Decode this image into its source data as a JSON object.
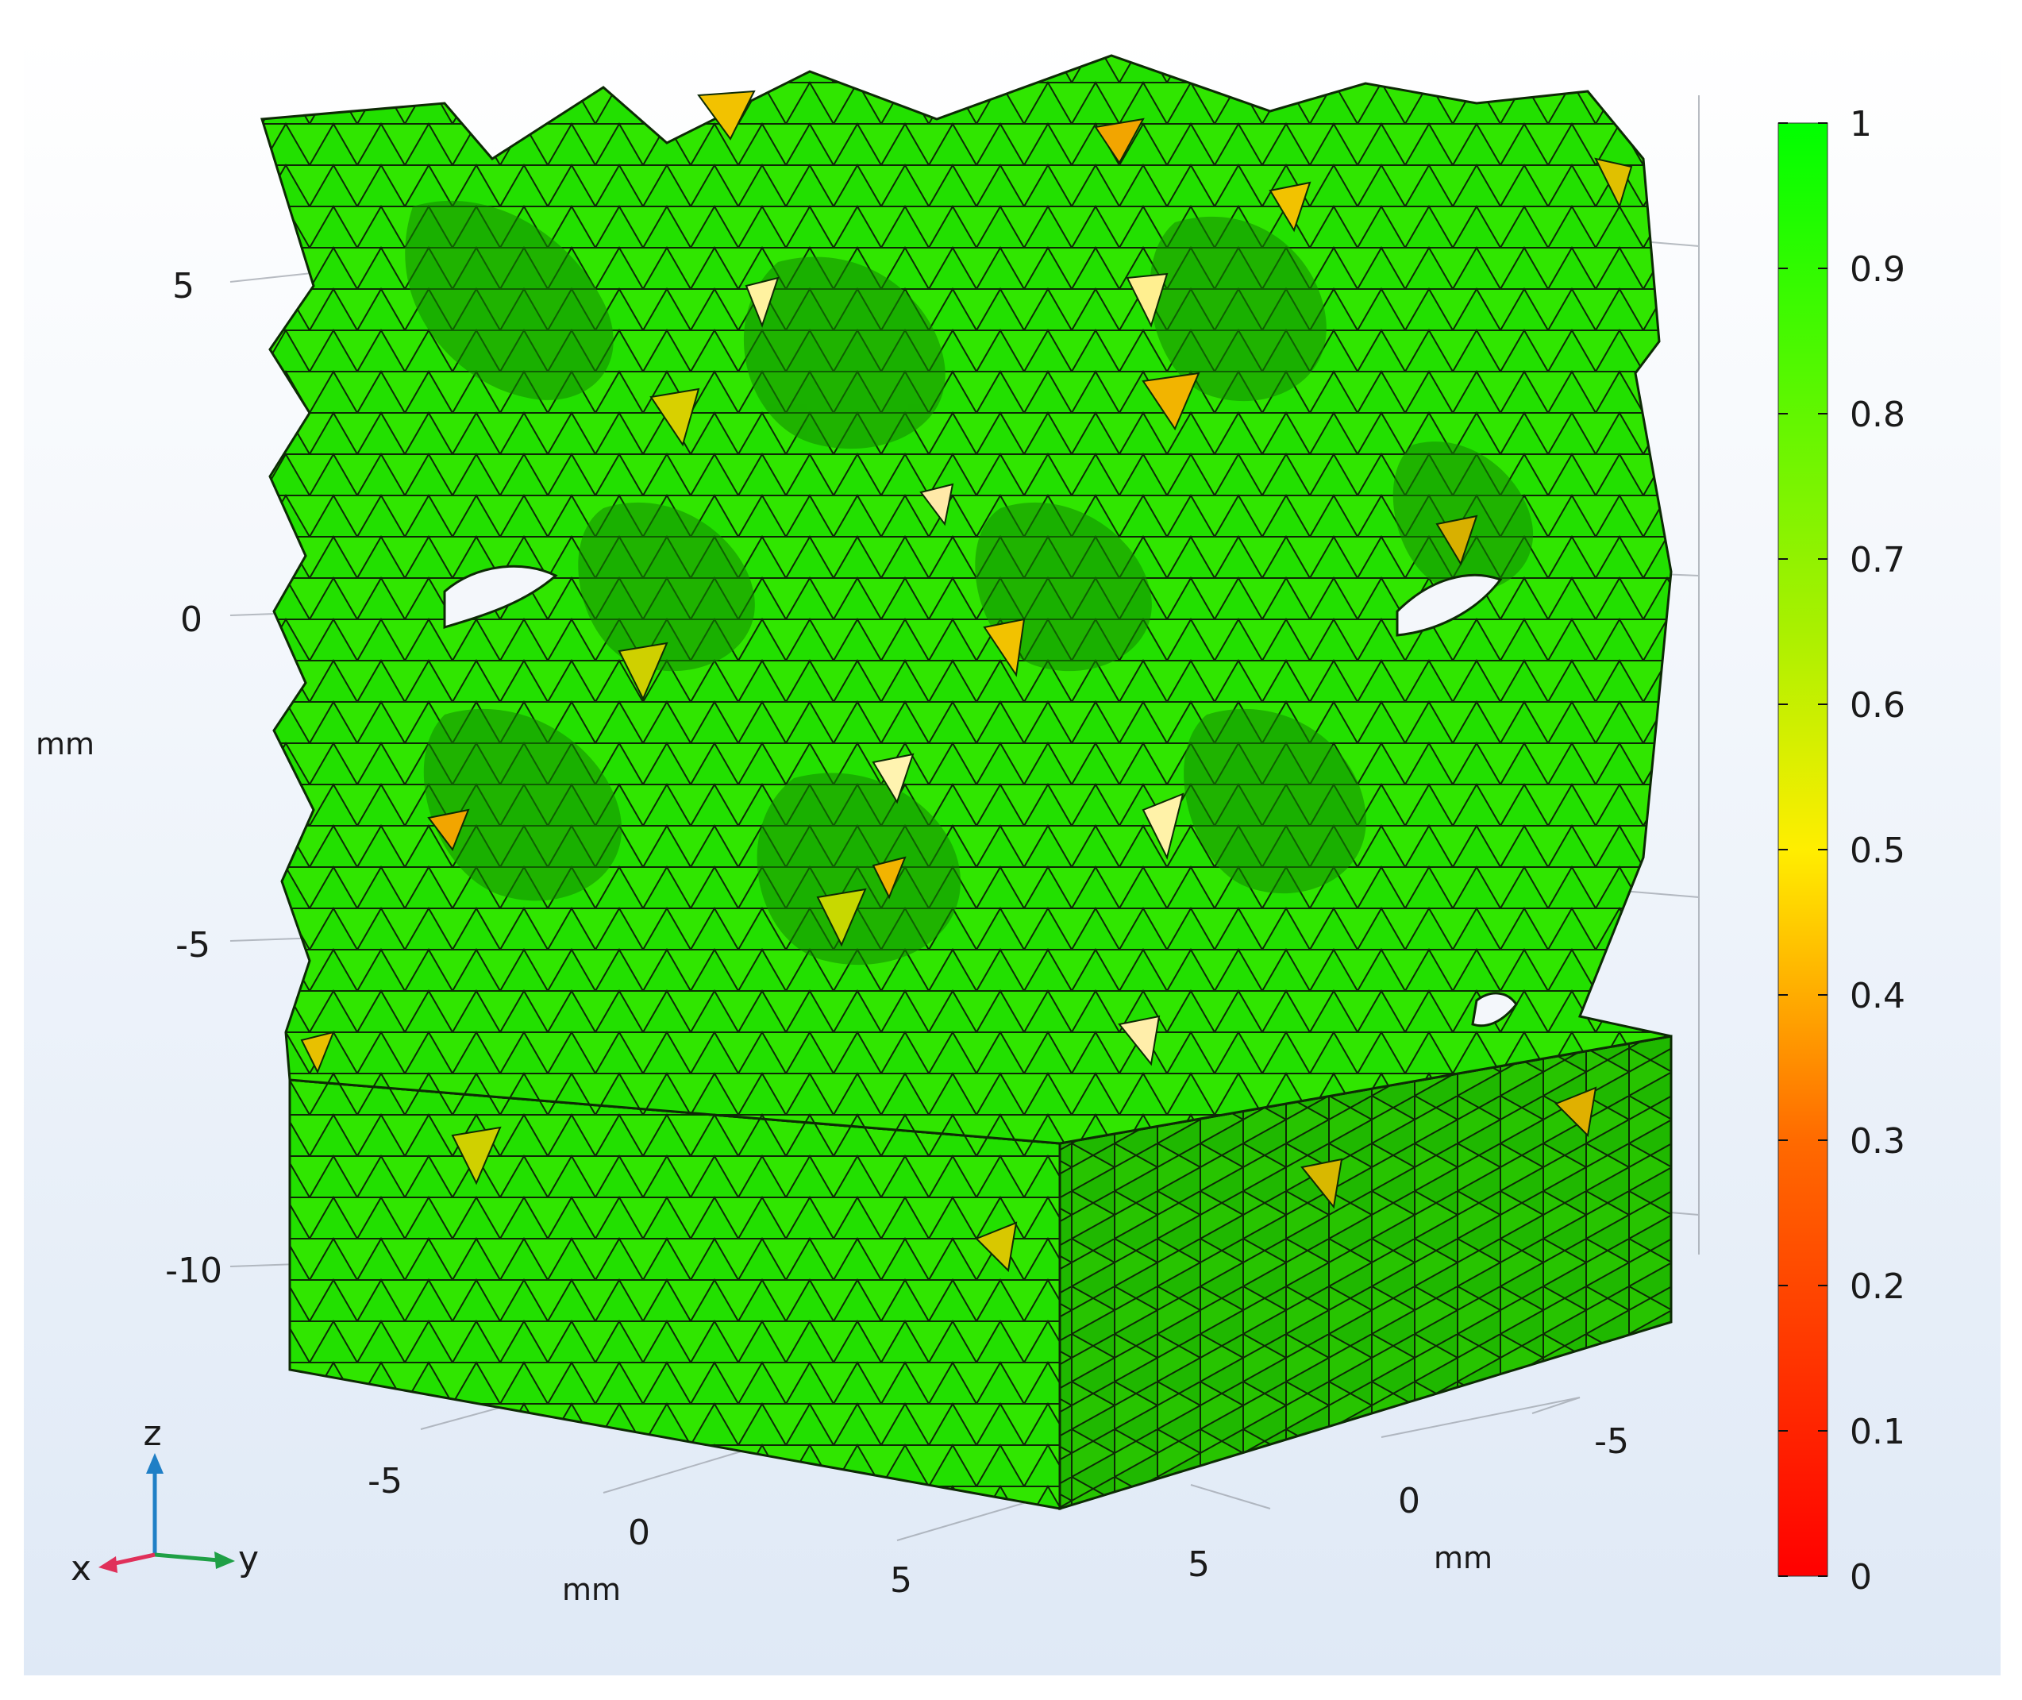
{
  "plot": {
    "z_axis": {
      "ticks": [
        "5",
        "0",
        "-5",
        "-10"
      ],
      "unit": "mm"
    },
    "x_axis": {
      "ticks": [
        "-5",
        "0",
        "5"
      ],
      "unit": "mm"
    },
    "y_axis": {
      "ticks": [
        "-5",
        "0",
        "5"
      ],
      "unit": "mm"
    },
    "colorbar": {
      "ticks": [
        "1",
        "0.9",
        "0.8",
        "0.7",
        "0.6",
        "0.5",
        "0.4",
        "0.3",
        "0.2",
        "0.1",
        "0"
      ],
      "colors": [
        "#ff0000",
        "#ff6a00",
        "#ffd000",
        "#ffff00",
        "#00ff00"
      ]
    },
    "triad": {
      "x": "x",
      "y": "y",
      "z": "z"
    },
    "colors": {
      "background_top": "#ffffff",
      "background_bottom": "#dfe9f6",
      "mesh_green": "#22e000",
      "mesh_dark": "#169a00",
      "edge": "#0d2a05"
    }
  }
}
